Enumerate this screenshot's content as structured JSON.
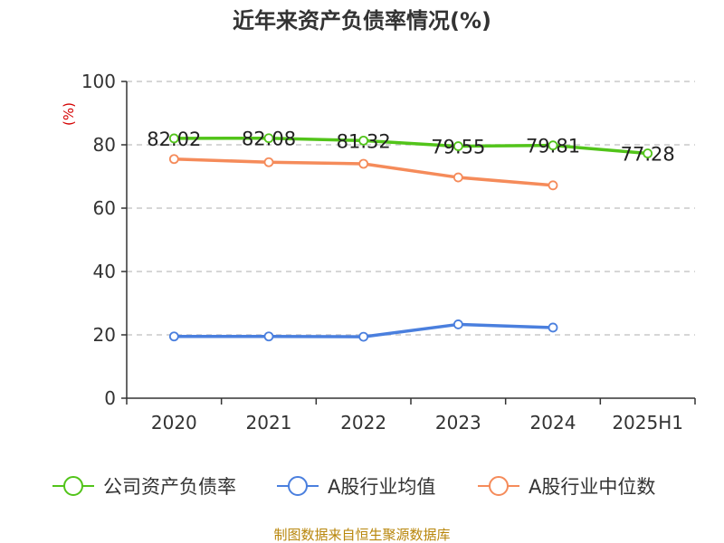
{
  "chart_data": {
    "type": "line",
    "title": "近年来资产负债率情况(%)",
    "ylabel": "(%)",
    "categories": [
      "2020",
      "2021",
      "2022",
      "2023",
      "2024",
      "2025H1"
    ],
    "ylim": [
      0,
      100
    ],
    "yticks": [
      0,
      20,
      40,
      60,
      80,
      100
    ],
    "grid": true,
    "legend_position": "bottom",
    "series": [
      {
        "name": "公司资产负债率",
        "color": "#52c41a",
        "values": [
          82.02,
          82.08,
          81.32,
          79.55,
          79.81,
          77.28
        ],
        "labels": [
          "82.02",
          "82.08",
          "81.32",
          "79.55",
          "79.81",
          "77.28"
        ]
      },
      {
        "name": "A股行业均值",
        "color": "#4a7fde",
        "values": [
          19.5,
          19.5,
          19.4,
          23.3,
          22.3,
          null
        ]
      },
      {
        "name": "A股行业中位数",
        "color": "#f58b5a",
        "values": [
          75.5,
          74.5,
          74.0,
          69.7,
          67.2,
          null
        ]
      }
    ],
    "source": "制图数据来自恒生聚源数据库"
  }
}
